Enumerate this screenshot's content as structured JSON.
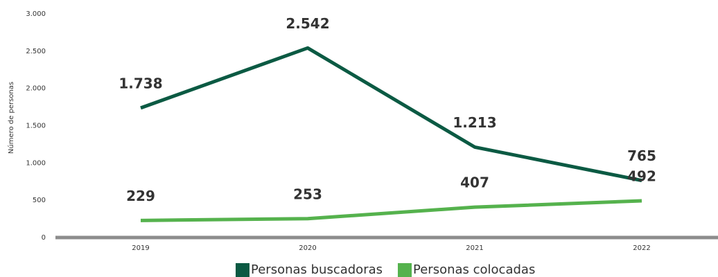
{
  "chart_data": {
    "type": "line",
    "y_label": "Número de personas",
    "categories": [
      "2019",
      "2020",
      "2021",
      "2022"
    ],
    "series": [
      {
        "name": "Personas buscadoras",
        "color": "#0b5a43",
        "values": [
          1738,
          2542,
          1213,
          765
        ],
        "value_labels": [
          "1.738",
          "2.542",
          "1.213",
          "765"
        ]
      },
      {
        "name": "Personas colocadas",
        "color": "#55b24d",
        "values": [
          229,
          253,
          407,
          492
        ]
      }
    ],
    "ylim": [
      0,
      3000
    ],
    "yticks": [
      0,
      500,
      {
        "value": 1000,
        "label": "1.000"
      },
      {
        "value": 1500,
        "label": "1.500"
      },
      {
        "value": 2000,
        "label": "2.000"
      },
      {
        "value": 2500,
        "label": "2.500"
      },
      {
        "value": 3000,
        "label": "3.000"
      }
    ],
    "legend": "bottom"
  }
}
